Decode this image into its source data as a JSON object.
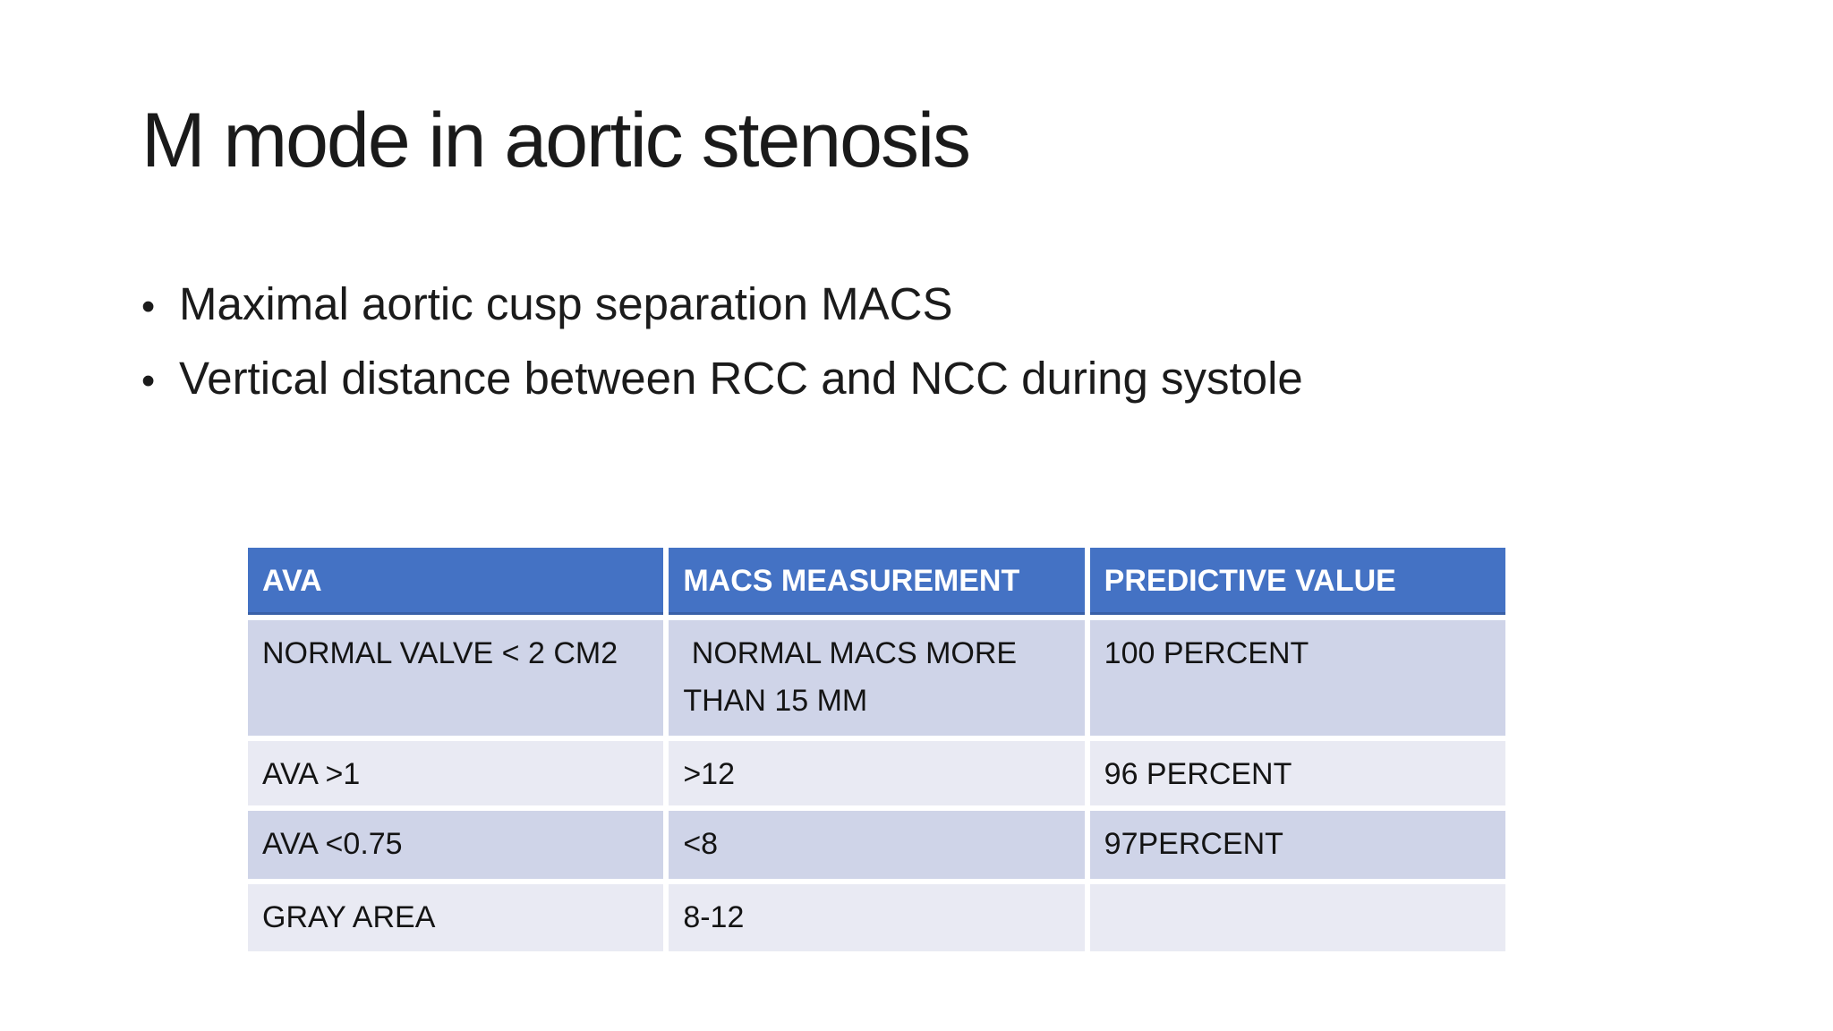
{
  "slide": {
    "title": "M mode in aortic stenosis",
    "bullet_glyph": "•",
    "bullets": [
      "Maximal aortic cusp separation MACS",
      "Vertical distance between RCC and NCC during systole"
    ]
  },
  "table": {
    "columns": [
      "AVA",
      "MACS MEASUREMENT",
      "PREDICTIVE VALUE"
    ],
    "rows": [
      {
        "ava": "NORMAL VALVE < 2 CM2",
        "macs": " NORMAL MACS MORE\nTHAN 15 MM",
        "predictive": "100 PERCENT"
      },
      {
        "ava": "AVA >1",
        "macs": ">12",
        "predictive": "96 PERCENT"
      },
      {
        "ava": "AVA <0.75",
        "macs": "<8",
        "predictive": "97PERCENT"
      },
      {
        "ava": "GRAY AREA",
        "macs": "8-12",
        "predictive": ""
      }
    ]
  },
  "colors": {
    "background": "#FFFFFF",
    "header_bg": "#4472C4",
    "header_text": "#FFFFFF",
    "band_dark": "#CFD4E8",
    "band_light": "#E9EAF3",
    "body_text": "#141414"
  }
}
